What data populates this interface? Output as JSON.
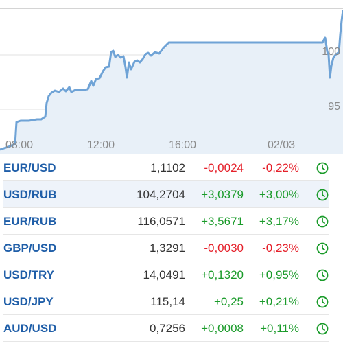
{
  "chart": {
    "x_ticks": [
      "08:00",
      "12:00",
      "16:00",
      "02/03"
    ],
    "y_ticks": [
      "100",
      "95"
    ],
    "line_color": "#6fa3d6",
    "fill_color": "#e8f0f8"
  },
  "colors": {
    "negative": "#e5202a",
    "positive": "#1a9b2a",
    "symbol": "#1f5ea8",
    "highlight": "#eef3fa"
  },
  "rates": [
    {
      "symbol": "EUR/USD",
      "price": "1,1102",
      "change": "-0,0024",
      "percent": "-0,22%",
      "direction": "down",
      "icon": "clock-icon",
      "highlighted": false
    },
    {
      "symbol": "USD/RUB",
      "price": "104,2704",
      "change": "+3,0379",
      "percent": "+3,00%",
      "direction": "up",
      "icon": "clock-icon",
      "highlighted": true
    },
    {
      "symbol": "EUR/RUB",
      "price": "116,0571",
      "change": "+3,5671",
      "percent": "+3,17%",
      "direction": "up",
      "icon": "clock-icon",
      "highlighted": false
    },
    {
      "symbol": "GBP/USD",
      "price": "1,3291",
      "change": "-0,0030",
      "percent": "-0,23%",
      "direction": "down",
      "icon": "clock-icon",
      "highlighted": false
    },
    {
      "symbol": "USD/TRY",
      "price": "14,0491",
      "change": "+0,1320",
      "percent": "+0,95%",
      "direction": "up",
      "icon": "clock-icon",
      "highlighted": false
    },
    {
      "symbol": "USD/JPY",
      "price": "115,14",
      "change": "+0,25",
      "percent": "+0,21%",
      "direction": "up",
      "icon": "clock-icon",
      "highlighted": false
    },
    {
      "symbol": "AUD/USD",
      "price": "0,7256",
      "change": "+0,0008",
      "percent": "+0,11%",
      "direction": "up",
      "icon": "clock-icon",
      "highlighted": false
    }
  ]
}
